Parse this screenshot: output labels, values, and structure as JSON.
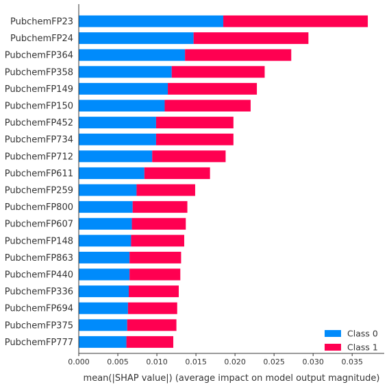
{
  "chart_data": {
    "type": "bar",
    "orientation": "horizontal",
    "stacked": true,
    "features": [
      "PubchemFP23",
      "PubchemFP24",
      "PubchemFP364",
      "PubchemFP358",
      "PubchemFP149",
      "PubchemFP150",
      "PubchemFP452",
      "PubchemFP734",
      "PubchemFP712",
      "PubchemFP611",
      "PubchemFP259",
      "PubchemFP800",
      "PubchemFP607",
      "PubchemFP148",
      "PubchemFP863",
      "PubchemFP440",
      "PubchemFP336",
      "PubchemFP694",
      "PubchemFP375",
      "PubchemFP777"
    ],
    "series": [
      {
        "name": "Class 0",
        "color": "#008bfb",
        "values": [
          0.0185,
          0.0147,
          0.0136,
          0.0119,
          0.0114,
          0.011,
          0.0099,
          0.0099,
          0.0094,
          0.0084,
          0.0074,
          0.0069,
          0.0068,
          0.0067,
          0.0065,
          0.0065,
          0.0064,
          0.0063,
          0.0062,
          0.0061
        ]
      },
      {
        "name": "Class 1",
        "color": "#ff0051",
        "values": [
          0.0185,
          0.0147,
          0.0136,
          0.0119,
          0.0114,
          0.011,
          0.0099,
          0.0099,
          0.0094,
          0.0084,
          0.0075,
          0.007,
          0.0069,
          0.0068,
          0.0066,
          0.0065,
          0.0064,
          0.0063,
          0.0063,
          0.006
        ]
      }
    ],
    "xlabel": "mean(|SHAP value|) (average impact on model output magnitude)",
    "xlim": [
      0,
      0.0391
    ],
    "xticks": [
      0.0,
      0.005,
      0.01,
      0.015,
      0.02,
      0.025,
      0.03,
      0.035
    ],
    "xtick_labels": [
      "0.000",
      "0.005",
      "0.010",
      "0.015",
      "0.020",
      "0.025",
      "0.030",
      "0.035"
    ],
    "legend_position": "lower-right",
    "grid": false
  }
}
